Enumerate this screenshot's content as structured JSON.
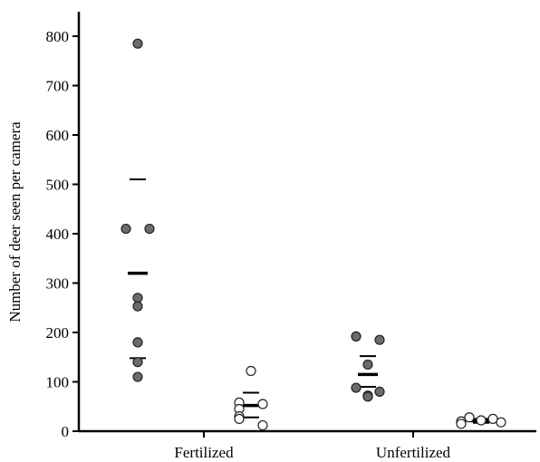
{
  "chart_data": {
    "type": "scatter",
    "title": "",
    "xlabel": "",
    "ylabel": "Number of deer seen per camera",
    "ylim": [
      0,
      850
    ],
    "yticks": [
      0,
      100,
      200,
      300,
      400,
      500,
      600,
      700,
      800
    ],
    "grid": false,
    "categories": [
      "Fertilized",
      "Unfertilized"
    ],
    "series": [
      {
        "fill": "#6b6b6b",
        "stroke": "#222222",
        "groups": [
          {
            "category": "Fertilized",
            "values": [
              785,
              410,
              410,
              270,
              253,
              180,
              140,
              110
            ],
            "mean": 320,
            "upper": 510,
            "lower": 148
          },
          {
            "category": "Unfertilized",
            "values": [
              192,
              185,
              135,
              88,
              80,
              72,
              70
            ],
            "mean": 115,
            "upper": 152,
            "lower": 90
          }
        ]
      },
      {
        "fill": "#ffffff",
        "stroke": "#222222",
        "groups": [
          {
            "category": "Fertilized",
            "values": [
              122,
              58,
              55,
              45,
              30,
              25,
              12
            ],
            "mean": 52,
            "upper": 78,
            "lower": 28
          },
          {
            "category": "Unfertilized",
            "values": [
              28,
              25,
              22,
              20,
              18,
              15
            ],
            "mean": 21,
            "upper": 25,
            "lower": 17
          }
        ]
      }
    ]
  }
}
